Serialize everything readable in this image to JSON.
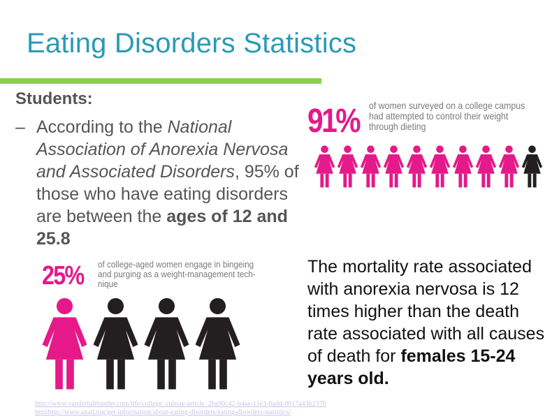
{
  "slide": {
    "title": "Eating Disorders Statistics",
    "colors": {
      "title": "#2a9ab8",
      "rule": "#8ccf4a",
      "accent_pink": "#e5198a",
      "figure_black": "#231f20",
      "body_text": "#555555"
    }
  },
  "students": {
    "heading": "Students:",
    "bullet_dash": "–",
    "bullet": {
      "pre": "According to the ",
      "italic": "National Association of Anorexia Nervosa and Associated Disorders",
      "mid": ", 95% of those who have eating disorders are between the ",
      "bold": "ages of 12 and 25.8"
    }
  },
  "stat_91": {
    "percent": "91%",
    "description": "of women surveyed on a college campus had attempted to control their weight through dieting",
    "figures": {
      "total": 10,
      "highlighted": 9,
      "icon": "female-figure-icon"
    }
  },
  "stat_25": {
    "percent": "25%",
    "description": "of college-aged women engage in bingeing and purging as a weight-management tech-nique",
    "figures": {
      "total": 4,
      "highlighted": 1,
      "icon": "female-figure-icon"
    }
  },
  "mortality": {
    "text": "The mortality rate associated with anorexia nervosa is 12 times higher than the death rate associated with all causes of death for ",
    "bold": "females 15-24 years old."
  },
  "sources": {
    "line1": "http://www.vanderbilthustler.com/life/college_culture/article_2ba90c42-b4ae-11e3-8add-0017a43b2370",
    "line2": "htmlhttp://www.anad.org/get-information/about-eating-disorders/eating-disorders-statistics/"
  }
}
